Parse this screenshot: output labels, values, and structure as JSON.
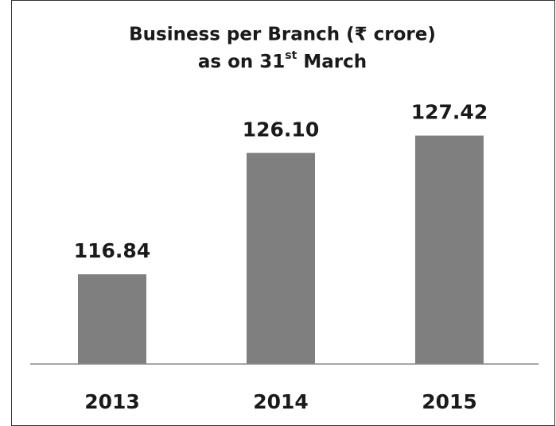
{
  "chart_data": {
    "type": "bar",
    "title": "Business per Branch (₹ crore)",
    "subtitle": [
      "as on 31",
      "st",
      " March"
    ],
    "categories": [
      "2013",
      "2014",
      "2015"
    ],
    "values": [
      116.84,
      126.1,
      127.42
    ],
    "value_labels": [
      "116.84",
      "126.10",
      "127.42"
    ],
    "color": "#7f7f80",
    "ylim": [
      110,
      130
    ]
  }
}
